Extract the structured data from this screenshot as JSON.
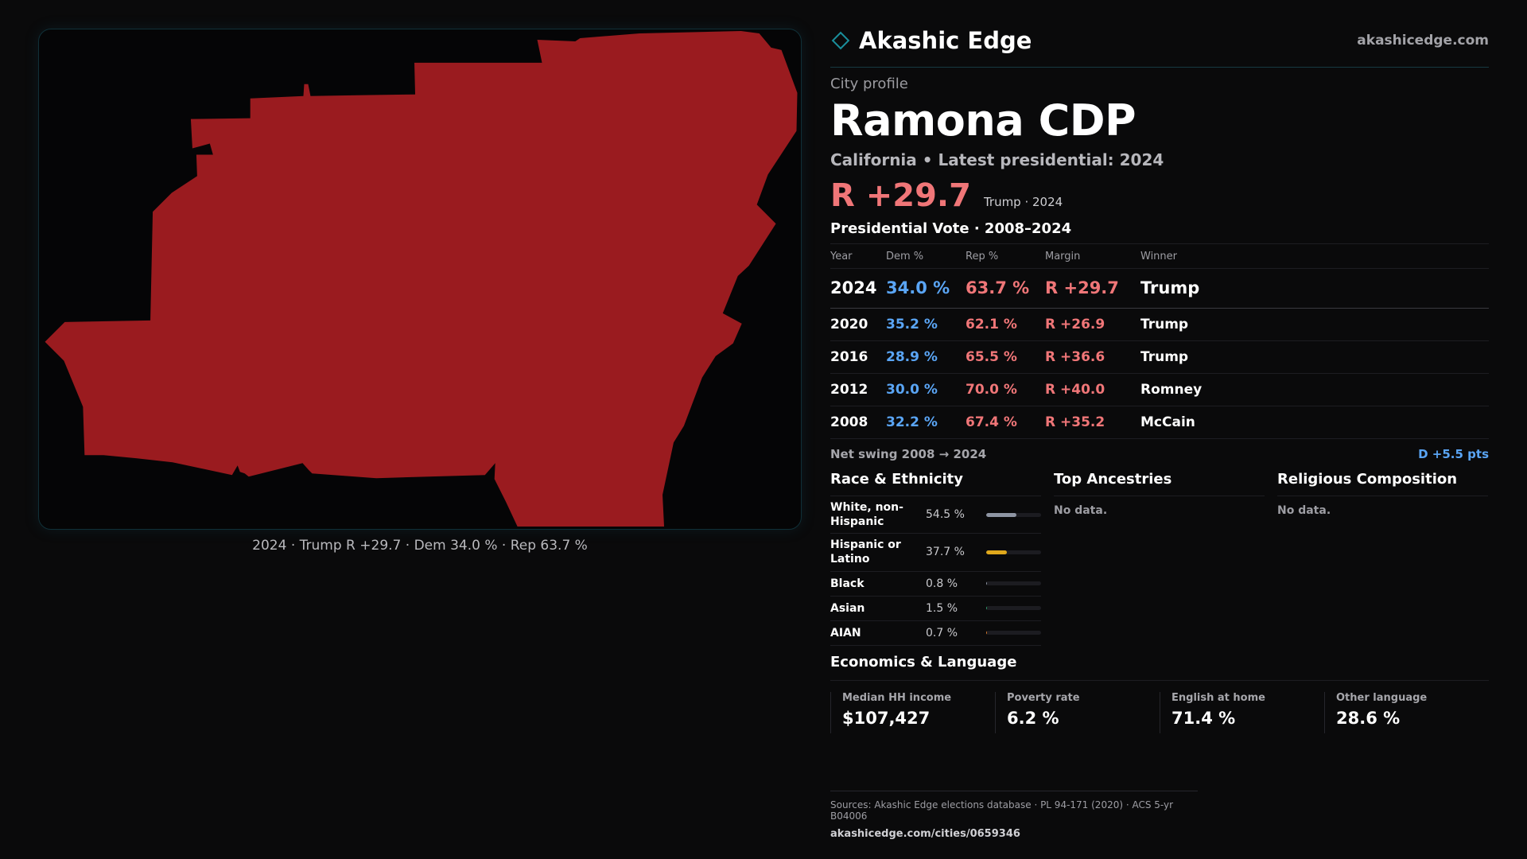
{
  "brand": {
    "name": "Akashic Edge",
    "url": "akashicedge.com",
    "accent": "#1a8f9c"
  },
  "map": {
    "fill_color": "#9a1b1f",
    "caption": "2024 · Trump R +29.7 · Dem 34.0 % · Rep 63.7 %"
  },
  "profile": {
    "eyebrow": "City profile",
    "title": "Ramona CDP",
    "subtitle": "California • Latest presidential: 2024",
    "headline_margin": "R +29.7",
    "headline_note": "Trump · 2024"
  },
  "votes": {
    "title": "Presidential Vote · 2008–2024",
    "headers": [
      "Year",
      "Dem %",
      "Rep %",
      "Margin",
      "Winner"
    ],
    "rows": [
      [
        "2024",
        "34.0 %",
        "63.7 %",
        "R +29.7",
        "Trump"
      ],
      [
        "2020",
        "35.2 %",
        "62.1 %",
        "R +26.9",
        "Trump"
      ],
      [
        "2016",
        "28.9 %",
        "65.5 %",
        "R +36.6",
        "Trump"
      ],
      [
        "2012",
        "30.0 %",
        "70.0 %",
        "R +40.0",
        "Romney"
      ],
      [
        "2008",
        "32.2 %",
        "67.4 %",
        "R +35.2",
        "McCain"
      ]
    ],
    "swing_label": "Net swing 2008 → 2024",
    "swing_value": "D +5.5 pts",
    "dem_color": "#5aa5f5",
    "rep_color": "#f07678"
  },
  "race": {
    "title": "Race & Ethnicity",
    "items": [
      {
        "label": "White, non-Hispanic",
        "pct": "54.5 %",
        "fraction": 0.545,
        "color": "#8e95a3"
      },
      {
        "label": "Hispanic or Latino",
        "pct": "37.7 %",
        "fraction": 0.377,
        "color": "#e0a81c"
      },
      {
        "label": "Black",
        "pct": "0.8 %",
        "fraction": 0.008,
        "color": "#8e95a3"
      },
      {
        "label": "Asian",
        "pct": "1.5 %",
        "fraction": 0.015,
        "color": "#2e9e6a"
      },
      {
        "label": "AIAN",
        "pct": "0.7 %",
        "fraction": 0.007,
        "color": "#d9782b"
      }
    ]
  },
  "ancestries": {
    "title": "Top Ancestries",
    "empty": "No data."
  },
  "religion": {
    "title": "Religious Composition",
    "empty": "No data."
  },
  "economics": {
    "title": "Economics & Language",
    "cards": [
      {
        "label": "Median HH income",
        "value": "$107,427"
      },
      {
        "label": "Poverty rate",
        "value": "6.2 %"
      },
      {
        "label": "English at home",
        "value": "71.4 %"
      },
      {
        "label": "Other language",
        "value": "28.6 %"
      }
    ]
  },
  "footer": {
    "sources": "Sources: Akashic Edge elections database · PL 94-171 (2020) · ACS 5-yr B04006",
    "url": "akashicedge.com/cities/0659346"
  }
}
